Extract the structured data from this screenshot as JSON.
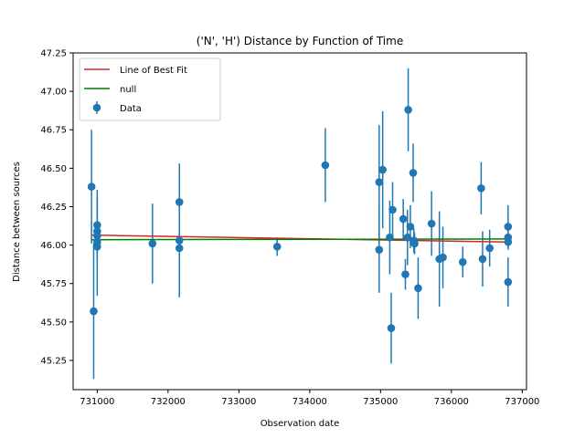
{
  "chart_data": {
    "type": "scatter",
    "title": "('N', 'H') Distance by Function of Time",
    "xlabel": "Observation date",
    "ylabel": "Distance between sources",
    "xlim": [
      730660,
      737060
    ],
    "ylim": [
      45.06,
      47.25
    ],
    "x_ticks": [
      731000,
      732000,
      733000,
      734000,
      735000,
      736000,
      737000
    ],
    "x_tick_labels": [
      "731000",
      "732000",
      "733000",
      "734000",
      "735000",
      "736000",
      "737000"
    ],
    "y_ticks": [
      45.25,
      45.5,
      45.75,
      46.0,
      46.25,
      46.5,
      46.75,
      47.0,
      47.25
    ],
    "y_tick_labels": [
      "45.25",
      "45.50",
      "45.75",
      "46.00",
      "46.25",
      "46.50",
      "46.75",
      "47.00",
      "47.25"
    ],
    "grid": false,
    "legend_position": "top-left",
    "series": [
      {
        "name": "Line of Best Fit",
        "kind": "line",
        "color": "#d62728",
        "x": [
          730920,
          736810
        ],
        "y": [
          46.065,
          46.02
        ]
      },
      {
        "name": "null",
        "kind": "line",
        "color": "#008000",
        "x": [
          730920,
          736810
        ],
        "y": [
          46.035,
          46.04
        ]
      },
      {
        "name": "Data",
        "kind": "errorbar",
        "color": "#1f77b4",
        "points": [
          {
            "x": 730920,
            "y": 46.38,
            "err": 0.37
          },
          {
            "x": 730950,
            "y": 45.57,
            "err": 0.44
          },
          {
            "x": 731000,
            "y": 46.13,
            "err": 0.23
          },
          {
            "x": 731000,
            "y": 46.09,
            "err": 0.07
          },
          {
            "x": 731000,
            "y": 46.06,
            "err": 0.06
          },
          {
            "x": 731000,
            "y": 46.02,
            "err": 0.07
          },
          {
            "x": 731000,
            "y": 45.99,
            "err": 0.32
          },
          {
            "x": 731780,
            "y": 46.01,
            "err": 0.26
          },
          {
            "x": 732160,
            "y": 46.28,
            "err": 0.25
          },
          {
            "x": 732160,
            "y": 46.03,
            "err": 0.03
          },
          {
            "x": 732160,
            "y": 45.98,
            "err": 0.32
          },
          {
            "x": 733540,
            "y": 45.99,
            "err": 0.06
          },
          {
            "x": 734220,
            "y": 46.52,
            "err": 0.24
          },
          {
            "x": 734980,
            "y": 46.41,
            "err": 0.37
          },
          {
            "x": 734980,
            "y": 45.97,
            "err": 0.28
          },
          {
            "x": 735030,
            "y": 46.49,
            "err": 0.38
          },
          {
            "x": 735130,
            "y": 46.05,
            "err": 0.24
          },
          {
            "x": 735150,
            "y": 45.46,
            "err": 0.23
          },
          {
            "x": 735170,
            "y": 46.23,
            "err": 0.18
          },
          {
            "x": 735320,
            "y": 46.17,
            "err": 0.13
          },
          {
            "x": 735350,
            "y": 45.81,
            "err": 0.1
          },
          {
            "x": 735380,
            "y": 46.05,
            "err": 0.18
          },
          {
            "x": 735390,
            "y": 46.88,
            "err": 0.27
          },
          {
            "x": 735420,
            "y": 46.12,
            "err": 0.14
          },
          {
            "x": 735460,
            "y": 46.47,
            "err": 0.19
          },
          {
            "x": 735470,
            "y": 46.03,
            "err": 0.08
          },
          {
            "x": 735480,
            "y": 46.01,
            "err": 0.07
          },
          {
            "x": 735530,
            "y": 45.72,
            "err": 0.2
          },
          {
            "x": 735720,
            "y": 46.14,
            "err": 0.21
          },
          {
            "x": 735830,
            "y": 45.91,
            "err": 0.31
          },
          {
            "x": 735880,
            "y": 45.92,
            "err": 0.2
          },
          {
            "x": 736160,
            "y": 45.89,
            "err": 0.1
          },
          {
            "x": 736420,
            "y": 46.37,
            "err": 0.17
          },
          {
            "x": 736440,
            "y": 45.91,
            "err": 0.18
          },
          {
            "x": 736540,
            "y": 45.98,
            "err": 0.12
          },
          {
            "x": 736800,
            "y": 46.12,
            "err": 0.14
          },
          {
            "x": 736800,
            "y": 46.05,
            "err": 0.04
          },
          {
            "x": 736800,
            "y": 46.02,
            "err": 0.05
          },
          {
            "x": 736800,
            "y": 45.76,
            "err": 0.16
          }
        ]
      }
    ]
  }
}
